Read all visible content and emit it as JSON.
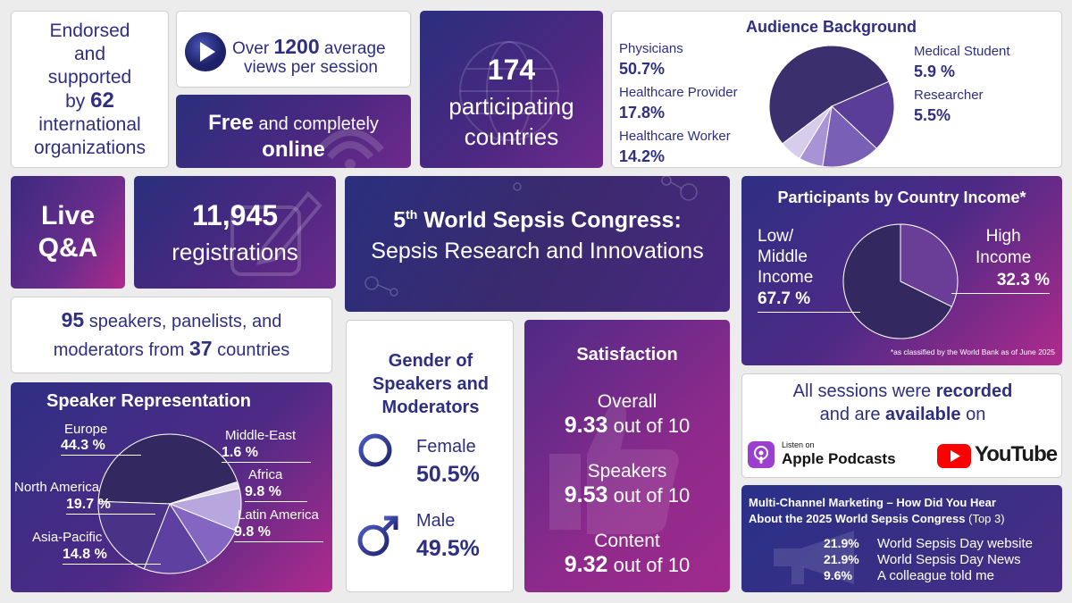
{
  "endorsed": {
    "line1": "Endorsed",
    "line2": "and",
    "line3": "supported",
    "line4_pre": "by",
    "line4_num": "62",
    "line5": "international",
    "line6": "organizations"
  },
  "views": {
    "pre": "Over",
    "num": "1200",
    "post": "average",
    "line2": "views per session"
  },
  "free": {
    "bold1": "Free",
    "rest1": "and completely",
    "bold2": "online"
  },
  "countries": {
    "num": "174",
    "line1": "participating",
    "line2": "countries"
  },
  "audience": {
    "title": "Audience Background",
    "items": [
      {
        "label": "Physicians",
        "value": "50.7%"
      },
      {
        "label": "Healthcare Provider",
        "value": "17.8%"
      },
      {
        "label": "Healthcare Worker",
        "value": "14.2%"
      },
      {
        "label": "Medical Student",
        "value": "5.9 %"
      },
      {
        "label": "Researcher",
        "value": "5.5%"
      }
    ]
  },
  "live": {
    "line1": "Live",
    "line2": "Q&A"
  },
  "registrations": {
    "num": "11,945",
    "label": "registrations"
  },
  "congress": {
    "num": "5",
    "sup": "th",
    "line1": "World Sepsis Congress:",
    "line2": "Sepsis Research and Innovations"
  },
  "income": {
    "title": "Participants by Country Income*",
    "low_l1": "Low/",
    "low_l2": "Middle",
    "low_l3": "Income",
    "low_val": "67.7 %",
    "high_l1": "High",
    "high_l2": "Income",
    "high_val": "32.3 %",
    "footnote": "*as classified by the World Bank as of June 2025"
  },
  "speakers": {
    "num1": "95",
    "text1": "speakers, panelists, and",
    "text2": "moderators from",
    "num2": "37",
    "text3": "countries"
  },
  "speaker_rep": {
    "title": "Speaker Representation",
    "items": [
      {
        "label": "Europe",
        "value": "44.3 %"
      },
      {
        "label": "Middle-East",
        "value": "1.6 %"
      },
      {
        "label": "Africa",
        "value": "9.8 %"
      },
      {
        "label": "Latin America",
        "value": "9.8 %"
      },
      {
        "label": "Asia-Pacific",
        "value": "14.8 %"
      },
      {
        "label": "North America",
        "value": "19.7 %"
      }
    ]
  },
  "gender": {
    "title1": "Gender of",
    "title2": "Speakers and",
    "title3": "Moderators",
    "female_label": "Female",
    "female_value": "50.5%",
    "male_label": "Male",
    "male_value": "49.5%"
  },
  "satisfaction": {
    "title": "Satisfaction",
    "items": [
      {
        "label": "Overall",
        "score": "9.33",
        "suffix": "out of 10"
      },
      {
        "label": "Speakers",
        "score": "9.53",
        "suffix": "out of 10"
      },
      {
        "label": "Content",
        "score": "9.32",
        "suffix": "out of 10"
      }
    ]
  },
  "recorded": {
    "pre1": "All sessions were",
    "bold1": "recorded",
    "pre2": "and are",
    "bold2": "available",
    "post2": "on",
    "podcast_small": "Listen on",
    "podcast_big": "Apple Podcasts",
    "youtube": "YouTube"
  },
  "marketing": {
    "title1": "Multi-Channel Marketing – How Did You Hear",
    "title2": "About the 2025 World Sepsis Congress",
    "title2_suffix": "(Top 3)",
    "items": [
      {
        "pct": "21.9%",
        "label": "World Sepsis Day website"
      },
      {
        "pct": "21.9%",
        "label": "World Sepsis Day News"
      },
      {
        "pct": "9.6%",
        "label": "A colleague told me"
      }
    ]
  },
  "chart_data": [
    {
      "type": "pie",
      "title": "Audience Background",
      "categories": [
        "Physicians",
        "Healthcare Provider",
        "Healthcare Worker",
        "Medical Student",
        "Researcher"
      ],
      "values": [
        50.7,
        17.8,
        14.2,
        5.9,
        5.5
      ]
    },
    {
      "type": "pie",
      "title": "Participants by Country Income*",
      "categories": [
        "Low/ Middle Income",
        "High Income"
      ],
      "values": [
        67.7,
        32.3
      ]
    },
    {
      "type": "pie",
      "title": "Speaker Representation",
      "categories": [
        "Europe",
        "Middle-East",
        "Africa",
        "Latin America",
        "Asia-Pacific",
        "North America"
      ],
      "values": [
        44.3,
        1.6,
        9.8,
        9.8,
        14.8,
        19.7
      ]
    }
  ]
}
